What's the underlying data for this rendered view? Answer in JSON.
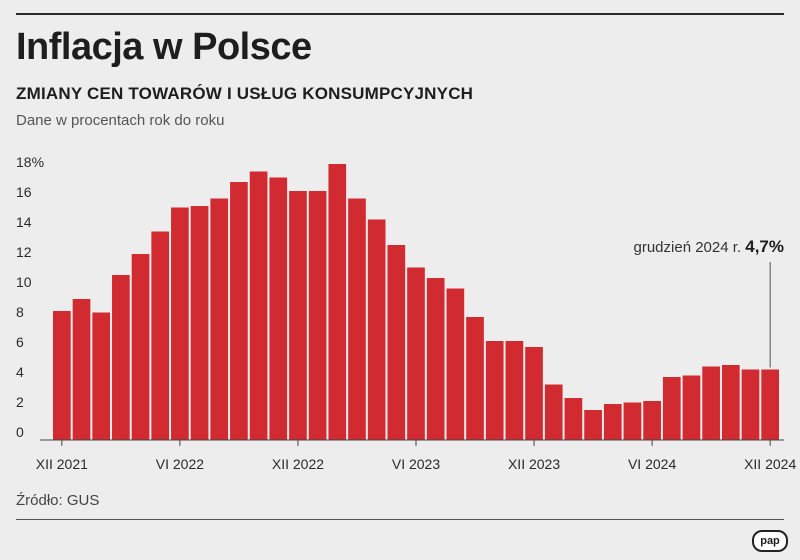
{
  "header": {
    "title": "Inflacja w Polsce",
    "subtitle": "ZMIANY CEN TOWARÓW I USŁUG KONSUMPCYJNYCH",
    "note": "Dane w procentach rok do roku"
  },
  "footer": {
    "source": "Źródło: GUS",
    "logo": "pap"
  },
  "chart_data": {
    "type": "bar",
    "ylim": [
      0,
      18
    ],
    "y_ticks": [
      "18%",
      "16",
      "14",
      "12",
      "10",
      "8",
      "6",
      "4",
      "2",
      "0"
    ],
    "y_tick_values": [
      18,
      16,
      14,
      12,
      10,
      8,
      6,
      4,
      2,
      0
    ],
    "x_ticks": [
      {
        "label": "XII 2021",
        "index": 0
      },
      {
        "label": "VI 2022",
        "index": 6
      },
      {
        "label": "XII 2022",
        "index": 12
      },
      {
        "label": "VI 2023",
        "index": 18
      },
      {
        "label": "XII 2023",
        "index": 24
      },
      {
        "label": "VI 2024",
        "index": 30
      },
      {
        "label": "XII 2024",
        "index": 36
      }
    ],
    "values": [
      8.6,
      9.4,
      8.5,
      11.0,
      12.4,
      13.9,
      15.5,
      15.6,
      16.1,
      17.2,
      17.9,
      17.5,
      16.6,
      16.6,
      18.4,
      16.1,
      14.7,
      13.0,
      11.5,
      10.8,
      10.1,
      8.2,
      6.6,
      6.6,
      6.2,
      3.7,
      2.8,
      2.0,
      2.4,
      2.5,
      2.6,
      4.2,
      4.3,
      4.9,
      5.0,
      4.7,
      4.7
    ],
    "bar_color": "#d12a31",
    "annotation": {
      "text": "grudzień 2024 r.",
      "value_label": "4,7%",
      "index": 36
    },
    "grid": false
  }
}
